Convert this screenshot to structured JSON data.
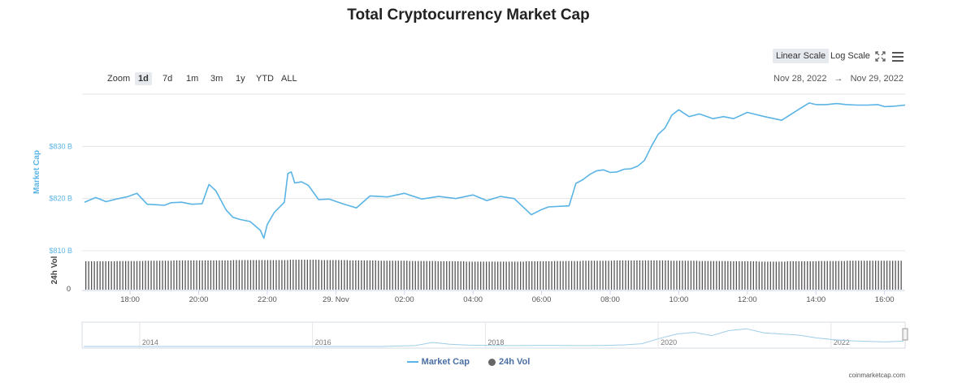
{
  "title": "Total Cryptocurrency Market Cap",
  "controls": {
    "zoom_label": "Zoom",
    "zoom_buttons": [
      "1d",
      "7d",
      "1m",
      "3m",
      "1y",
      "YTD",
      "ALL"
    ],
    "active_zoom": "1d",
    "linear_scale": "Linear Scale",
    "log_scale": "Log Scale",
    "active_scale": "Linear Scale",
    "date_from": "Nov 28, 2022",
    "date_arrow": "→",
    "date_to": "Nov 29, 2022",
    "icons": [
      "expand-icon",
      "menu-icon"
    ]
  },
  "colors": {
    "market_cap": "#5ab4e5",
    "volume": "#555555",
    "navigator": "#9ecde8"
  },
  "chart_data": {
    "type": "line",
    "ylabel": "Market Cap",
    "ylabel2": "24h Vol",
    "x_ticks": [
      "18:00",
      "20:00",
      "22:00",
      "29. Nov",
      "02:00",
      "04:00",
      "06:00",
      "08:00",
      "10:00",
      "12:00",
      "14:00",
      "16:00"
    ],
    "x_range": [
      16.6,
      40.6
    ],
    "y_ticks": [
      "$810 B",
      "$820 B",
      "$830 B"
    ],
    "y_tick_values": [
      810,
      820,
      830
    ],
    "ylim": [
      810,
      840
    ],
    "vol_tick": "0",
    "grid": true,
    "series": [
      {
        "name": "Market Cap",
        "x": [
          16.67,
          17.0,
          17.3,
          17.6,
          17.9,
          18.2,
          18.5,
          18.8,
          19.0,
          19.2,
          19.5,
          19.8,
          20.1,
          20.3,
          20.5,
          20.8,
          21.0,
          21.2,
          21.5,
          21.8,
          21.9,
          22.0,
          22.2,
          22.5,
          22.6,
          22.7,
          22.8,
          23.0,
          23.2,
          23.5,
          23.8,
          24.2,
          24.6,
          25.0,
          25.5,
          26.0,
          26.5,
          27.0,
          27.5,
          28.0,
          28.4,
          28.8,
          29.2,
          29.7,
          30.0,
          30.2,
          30.5,
          30.8,
          31.0,
          31.2,
          31.4,
          31.6,
          31.8,
          32.0,
          32.2,
          32.4,
          32.6,
          32.8,
          33.0,
          33.2,
          33.4,
          33.6,
          33.8,
          34.0,
          34.3,
          34.6,
          35.0,
          35.3,
          35.6,
          36.0,
          36.5,
          37.0,
          37.5,
          37.8,
          38.0,
          38.3,
          38.6,
          38.9,
          39.2,
          39.5,
          39.8,
          40.0,
          40.3,
          40.6
        ],
        "values": [
          819.3,
          820.2,
          819.4,
          819.9,
          820.3,
          821.0,
          818.9,
          818.8,
          818.7,
          819.2,
          819.3,
          818.9,
          819.0,
          822.7,
          821.5,
          817.8,
          816.4,
          816.0,
          815.6,
          813.9,
          812.4,
          815.0,
          817.3,
          819.3,
          824.8,
          825.1,
          823.0,
          823.2,
          822.5,
          819.8,
          819.9,
          819.0,
          818.2,
          820.5,
          820.3,
          821.0,
          819.9,
          820.4,
          820.0,
          820.7,
          819.6,
          820.4,
          820.0,
          816.9,
          817.9,
          818.4,
          818.5,
          818.6,
          822.9,
          823.6,
          824.6,
          825.3,
          825.5,
          825.0,
          825.1,
          825.6,
          825.7,
          826.2,
          827.3,
          830.0,
          832.3,
          833.5,
          836.0,
          837.0,
          835.7,
          836.2,
          835.3,
          835.7,
          835.3,
          836.5,
          835.7,
          835.0,
          837.1,
          838.3,
          838.0,
          838.0,
          838.2,
          838.0,
          837.9,
          837.9,
          838.0,
          837.6,
          837.7,
          837.9
        ]
      },
      {
        "name": "24h Vol",
        "type": "bar",
        "values": [
          0.92,
          0.93,
          0.94,
          0.95,
          0.95,
          0.96,
          0.96,
          0.97,
          0.96,
          0.95,
          0.94,
          0.93,
          0.92,
          0.91,
          0.91,
          0.92,
          0.93,
          0.94,
          0.95,
          0.95,
          0.94,
          0.93,
          0.92,
          0.91,
          0.92,
          0.93,
          0.94,
          0.94
        ]
      }
    ],
    "navigator": {
      "x_ticks": [
        "2014",
        "2016",
        "2018",
        "2020",
        "2022"
      ]
    }
  },
  "credits": "coinmarketcap.com"
}
